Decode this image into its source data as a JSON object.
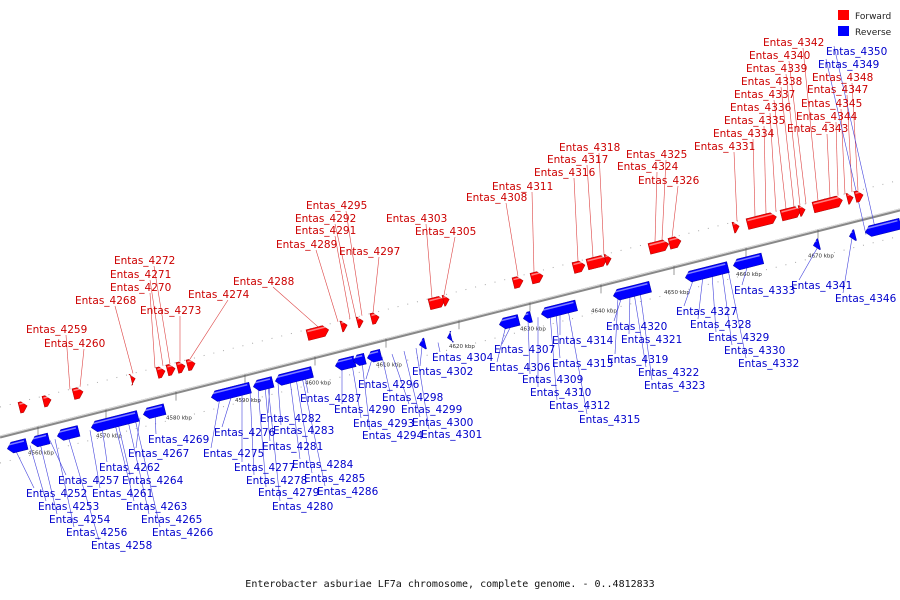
{
  "caption": "Enterobacter asburiae LF7a chromosome, complete genome. - 0..4812833",
  "legend": [
    {
      "label": "Forward",
      "color": "#ff0000"
    },
    {
      "label": "Reverse",
      "color": "#0000ff"
    }
  ],
  "colors": {
    "forward": "#ff0000",
    "reverse": "#0000ff",
    "axis": "#888888"
  },
  "ticks": [
    "4560 kbp",
    "4570 kbp",
    "4580 kbp",
    "4590 kbp",
    "4600 kbp",
    "4610 kbp",
    "4620 kbp",
    "4630 kbp",
    "4640 kbp",
    "4650 kbp",
    "4660 kbp",
    "4670 kbp"
  ],
  "forward_genes": [
    "Entas_4259",
    "Entas_4260",
    "Entas_4268",
    "Entas_4270",
    "Entas_4271",
    "Entas_4272",
    "Entas_4273",
    "Entas_4274",
    "Entas_4288",
    "Entas_4289",
    "Entas_4291",
    "Entas_4292",
    "Entas_4295",
    "Entas_4297",
    "Entas_4303",
    "Entas_4305",
    "Entas_4308",
    "Entas_4311",
    "Entas_4316",
    "Entas_4317",
    "Entas_4318",
    "Entas_4324",
    "Entas_4325",
    "Entas_4326",
    "Entas_4331",
    "Entas_4334",
    "Entas_4335",
    "Entas_4336",
    "Entas_4337",
    "Entas_4338",
    "Entas_4339",
    "Entas_4340",
    "Entas_4342",
    "Entas_4343",
    "Entas_4344",
    "Entas_4345",
    "Entas_4347",
    "Entas_4348"
  ],
  "reverse_genes": [
    "Entas_4252",
    "Entas_4253",
    "Entas_4254",
    "Entas_4256",
    "Entas_4257",
    "Entas_4258",
    "Entas_4261",
    "Entas_4262",
    "Entas_4263",
    "Entas_4264",
    "Entas_4265",
    "Entas_4266",
    "Entas_4267",
    "Entas_4269",
    "Entas_4275",
    "Entas_4276",
    "Entas_4277",
    "Entas_4278",
    "Entas_4279",
    "Entas_4280",
    "Entas_4281",
    "Entas_4282",
    "Entas_4283",
    "Entas_4284",
    "Entas_4285",
    "Entas_4286",
    "Entas_4287",
    "Entas_4290",
    "Entas_4293",
    "Entas_4294",
    "Entas_4296",
    "Entas_4298",
    "Entas_4299",
    "Entas_4300",
    "Entas_4301",
    "Entas_4302",
    "Entas_4304",
    "Entas_4306",
    "Entas_4307",
    "Entas_4309",
    "Entas_4310",
    "Entas_4312",
    "Entas_4313",
    "Entas_4314",
    "Entas_4315",
    "Entas_4319",
    "Entas_4320",
    "Entas_4321",
    "Entas_4322",
    "Entas_4323",
    "Entas_4327",
    "Entas_4328",
    "Entas_4329",
    "Entas_4330",
    "Entas_4332",
    "Entas_4333",
    "Entas_4341",
    "Entas_4346",
    "Entas_4349",
    "Entas_4350"
  ]
}
